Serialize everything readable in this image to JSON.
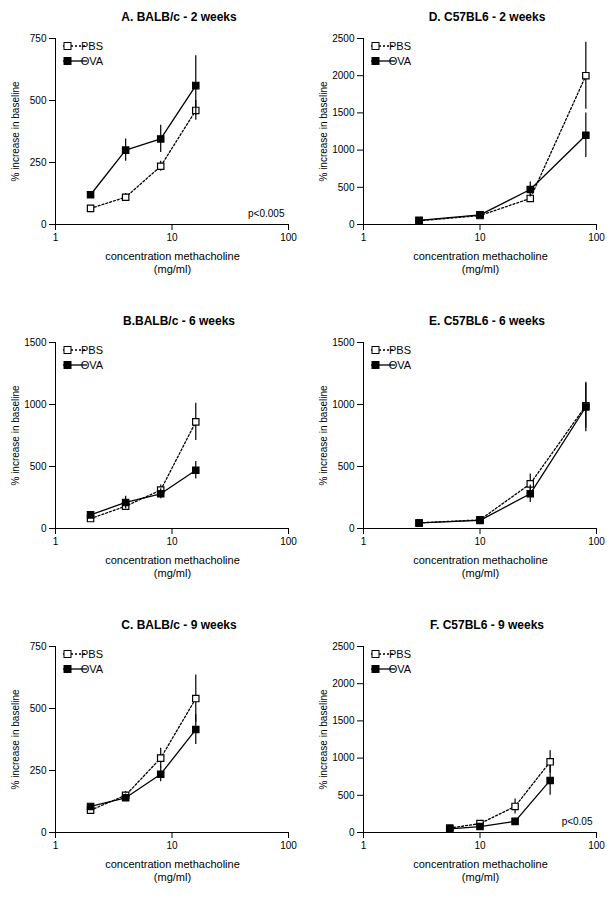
{
  "chart_data": [
    {
      "type": "line",
      "title": "A. BALB/c - 2 weeks",
      "x_label": "concentration methacholine\n(mg/ml)",
      "y_label": "% increase in baseline",
      "x": [
        2,
        4,
        8,
        16
      ],
      "log": "x",
      "xlim": [
        1,
        100
      ],
      "xticks": [
        1,
        10,
        100
      ],
      "ylim": [
        0,
        750
      ],
      "yticks": [
        0,
        250,
        500,
        750
      ],
      "legend": "top-left",
      "annotations": [
        "p<0.005"
      ],
      "series": [
        {
          "name": "PBS",
          "color": "#000000",
          "marker": "square-open",
          "line_style": "dotted",
          "values": [
            65,
            110,
            235,
            460
          ],
          "errors": [
            10,
            15,
            20,
            40
          ]
        },
        {
          "name": "OVA",
          "color": "#000000",
          "marker": "square",
          "line_style": "solid",
          "values": [
            120,
            300,
            345,
            560
          ],
          "errors": [
            10,
            45,
            55,
            120
          ]
        }
      ]
    },
    {
      "type": "line",
      "title": "D. C57BL6 - 2 weeks",
      "x_label": "concentration methacholine\n(mg/ml)",
      "y_label": "% increase in baseline",
      "x": [
        3,
        10,
        27,
        81
      ],
      "log": "x",
      "xlim": [
        1,
        100
      ],
      "xticks": [
        1,
        10,
        100
      ],
      "ylim": [
        0,
        2500
      ],
      "yticks": [
        0,
        500,
        1000,
        1500,
        2000,
        2500
      ],
      "legend": "top-left",
      "series": [
        {
          "name": "PBS",
          "color": "#000000",
          "marker": "square-open",
          "line_style": "dotted",
          "values": [
            50,
            120,
            350,
            2000
          ],
          "errors": [
            10,
            20,
            50,
            450
          ]
        },
        {
          "name": "OVA",
          "color": "#000000",
          "marker": "square",
          "line_style": "solid",
          "values": [
            55,
            130,
            470,
            1200
          ],
          "errors": [
            10,
            20,
            100,
            300
          ]
        }
      ]
    },
    {
      "type": "line",
      "title": "B.BALB/c - 6 weeks",
      "x_label": "concentration methacholine\n(mg/ml)",
      "y_label": "% increase in baseline",
      "x": [
        2,
        4,
        8,
        16
      ],
      "log": "x",
      "xlim": [
        1,
        100
      ],
      "xticks": [
        1,
        10,
        100
      ],
      "ylim": [
        0,
        1500
      ],
      "yticks": [
        0,
        500,
        1000,
        1500
      ],
      "legend": "top-left",
      "series": [
        {
          "name": "PBS",
          "color": "#000000",
          "marker": "square-open",
          "line_style": "dotted",
          "values": [
            80,
            180,
            310,
            860
          ],
          "errors": [
            15,
            30,
            40,
            150
          ]
        },
        {
          "name": "OVA",
          "color": "#000000",
          "marker": "square",
          "line_style": "solid",
          "values": [
            110,
            210,
            280,
            470
          ],
          "errors": [
            15,
            50,
            40,
            70
          ]
        }
      ]
    },
    {
      "type": "line",
      "title": "E. C57BL6 - 6 weeks",
      "x_label": "concentration methacholine\n(mg/ml)",
      "y_label": "% increase in baseline",
      "x": [
        3,
        10,
        27,
        81
      ],
      "log": "x",
      "xlim": [
        1,
        100
      ],
      "xticks": [
        1,
        10,
        100
      ],
      "ylim": [
        0,
        1500
      ],
      "yticks": [
        0,
        500,
        1000,
        1500
      ],
      "legend": "top-left",
      "series": [
        {
          "name": "PBS",
          "color": "#000000",
          "marker": "square-open",
          "line_style": "dotted",
          "values": [
            45,
            70,
            360,
            990
          ],
          "errors": [
            5,
            10,
            80,
            180
          ]
        },
        {
          "name": "OVA",
          "color": "#000000",
          "marker": "square",
          "line_style": "solid",
          "values": [
            45,
            65,
            280,
            980
          ],
          "errors": [
            5,
            10,
            70,
            200
          ]
        }
      ]
    },
    {
      "type": "line",
      "title": "C. BALB/c - 9 weeks",
      "x_label": "concentration methacholine\n(mg/ml)",
      "y_label": "% increase in baseline",
      "x": [
        2,
        4,
        8,
        16
      ],
      "log": "x",
      "xlim": [
        1,
        100
      ],
      "xticks": [
        1,
        10,
        100
      ],
      "ylim": [
        0,
        750
      ],
      "yticks": [
        0,
        250,
        500,
        750
      ],
      "legend": "top-left",
      "series": [
        {
          "name": "PBS",
          "color": "#000000",
          "marker": "square-open",
          "line_style": "dotted",
          "values": [
            90,
            150,
            300,
            540
          ],
          "errors": [
            10,
            15,
            40,
            95
          ]
        },
        {
          "name": "OVA",
          "color": "#000000",
          "marker": "square",
          "line_style": "solid",
          "values": [
            105,
            140,
            235,
            415
          ],
          "errors": [
            10,
            15,
            30,
            60
          ]
        }
      ]
    },
    {
      "type": "line",
      "title": "F. C57BL6 - 9 weeks",
      "x_label": "concentration methacholine\n(mg/ml)",
      "y_label": "% increase in baseline",
      "x": [
        5.5,
        10,
        20,
        40
      ],
      "log": "x",
      "xlim": [
        1,
        100
      ],
      "xticks": [
        1,
        10,
        100
      ],
      "ylim": [
        0,
        2500
      ],
      "yticks": [
        0,
        500,
        1000,
        1500,
        2000,
        2500
      ],
      "legend": "top-left",
      "annotations": [
        "p<0.05"
      ],
      "series": [
        {
          "name": "PBS",
          "color": "#000000",
          "marker": "square-open",
          "line_style": "dotted",
          "values": [
            60,
            120,
            350,
            950
          ],
          "errors": [
            10,
            20,
            100,
            150
          ]
        },
        {
          "name": "OVA",
          "color": "#000000",
          "marker": "square",
          "line_style": "solid",
          "values": [
            50,
            80,
            150,
            700
          ],
          "errors": [
            10,
            20,
            40,
            200
          ]
        }
      ]
    }
  ]
}
